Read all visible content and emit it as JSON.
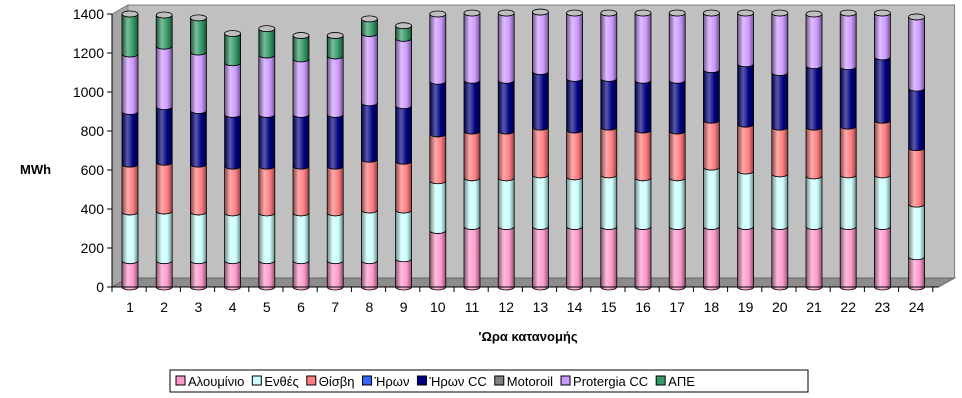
{
  "chart_data": {
    "type": "bar",
    "stacked": true,
    "style": "3d-cylinder",
    "title": "",
    "xlabel": "'Ωρα κατανομής",
    "ylabel": "MWh",
    "ylim": [
      0,
      1400
    ],
    "yticks": [
      0,
      200,
      400,
      600,
      800,
      1000,
      1200,
      1400
    ],
    "grid": false,
    "legend": "bottom",
    "categories": [
      "1",
      "2",
      "3",
      "4",
      "5",
      "6",
      "7",
      "8",
      "9",
      "10",
      "11",
      "12",
      "13",
      "14",
      "15",
      "16",
      "17",
      "18",
      "19",
      "20",
      "21",
      "22",
      "23",
      "24"
    ],
    "series": [
      {
        "name": "Αλουμίνιο",
        "color": "#ff99cc",
        "values": [
          135,
          135,
          135,
          135,
          135,
          135,
          135,
          135,
          145,
          290,
          310,
          310,
          310,
          310,
          310,
          310,
          310,
          310,
          310,
          310,
          310,
          310,
          310,
          155
        ]
      },
      {
        "name": "Ενθές",
        "color": "#ccffff",
        "values": [
          250,
          255,
          250,
          245,
          245,
          245,
          245,
          260,
          250,
          255,
          250,
          250,
          265,
          255,
          265,
          250,
          250,
          305,
          285,
          270,
          260,
          265,
          265,
          270
        ]
      },
      {
        "name": "Θίσβη",
        "color": "#ff7c80",
        "values": [
          245,
          250,
          245,
          240,
          240,
          240,
          240,
          260,
          250,
          240,
          240,
          240,
          245,
          240,
          245,
          245,
          240,
          240,
          240,
          240,
          250,
          250,
          280,
          290
        ]
      },
      {
        "name": "Ήρων",
        "color": "#3366ff",
        "values": [
          0,
          0,
          0,
          0,
          0,
          0,
          0,
          0,
          0,
          0,
          0,
          0,
          0,
          0,
          0,
          0,
          0,
          0,
          0,
          0,
          0,
          0,
          0,
          0
        ]
      },
      {
        "name": "Ήρων CC",
        "color": "#000080",
        "values": [
          270,
          285,
          275,
          265,
          265,
          265,
          265,
          290,
          285,
          270,
          260,
          260,
          285,
          265,
          250,
          255,
          260,
          260,
          310,
          280,
          315,
          305,
          325,
          305
        ]
      },
      {
        "name": "Motoroil",
        "color": "#808080",
        "values": [
          0,
          0,
          0,
          0,
          0,
          0,
          0,
          0,
          0,
          0,
          0,
          0,
          0,
          0,
          0,
          0,
          0,
          0,
          0,
          0,
          0,
          0,
          0,
          0
        ]
      },
      {
        "name": "Protergia CC",
        "color": "#cc99ff",
        "values": [
          295,
          310,
          300,
          265,
          305,
          285,
          300,
          355,
          345,
          345,
          345,
          345,
          305,
          335,
          335,
          345,
          345,
          290,
          260,
          305,
          265,
          275,
          225,
          365
        ]
      },
      {
        "name": "ΑΠΕ",
        "color": "#339966",
        "values": [
          205,
          160,
          175,
          150,
          135,
          120,
          105,
          75,
          65,
          0,
          0,
          0,
          0,
          0,
          0,
          0,
          0,
          0,
          0,
          0,
          0,
          0,
          0,
          0
        ]
      }
    ]
  }
}
